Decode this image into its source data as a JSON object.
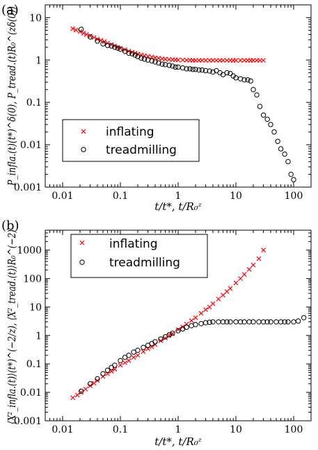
{
  "colors": {
    "inflating": "#ff0000",
    "treadmilling": "#000000"
  },
  "chart_data": [
    {
      "type": "scatter",
      "panel_label": "(a)",
      "xlabel": "t/t*, t/R₀ᶻ",
      "ylabel": "P_infla.(t)(t*)^δ(0), P_tread.(t)R₀^(zδ(0))",
      "x_scale": "log",
      "y_scale": "log",
      "xlim": [
        0.005,
        200
      ],
      "ylim": [
        0.001,
        20
      ],
      "x_ticks": [
        0.01,
        0.1,
        1,
        10,
        100
      ],
      "x_tick_labels": [
        "0.01",
        "0.1",
        "1",
        "10",
        "100"
      ],
      "y_ticks": [
        0.001,
        0.01,
        0.1,
        1,
        10
      ],
      "y_tick_labels": [
        "0.001",
        "0.01",
        "0.1",
        "1",
        "10"
      ],
      "legend_position": "lower-left",
      "series": [
        {
          "name": "inflating",
          "marker": "x",
          "x": [
            0.015,
            0.017,
            0.02,
            0.023,
            0.026,
            0.03,
            0.035,
            0.04,
            0.046,
            0.053,
            0.06,
            0.07,
            0.08,
            0.09,
            0.1,
            0.12,
            0.14,
            0.16,
            0.18,
            0.2,
            0.23,
            0.26,
            0.3,
            0.35,
            0.4,
            0.46,
            0.53,
            0.6,
            0.7,
            0.8,
            0.9,
            1.0,
            1.2,
            1.4,
            1.6,
            1.8,
            2.0,
            2.3,
            2.6,
            3.0,
            3.5,
            4.0,
            4.6,
            5.3,
            6.0,
            7.0,
            8.0,
            9.0,
            10,
            12,
            14,
            16,
            18,
            20,
            23,
            26,
            30
          ],
          "y": [
            5.5,
            5.1,
            4.7,
            4.3,
            4.0,
            3.7,
            3.4,
            3.1,
            2.9,
            2.7,
            2.5,
            2.3,
            2.15,
            2.0,
            1.9,
            1.75,
            1.62,
            1.52,
            1.45,
            1.38,
            1.32,
            1.26,
            1.21,
            1.17,
            1.13,
            1.1,
            1.07,
            1.05,
            1.03,
            1.02,
            1.01,
            1.0,
            1.0,
            0.99,
            0.99,
            0.98,
            0.98,
            0.98,
            0.98,
            0.98,
            0.98,
            0.98,
            0.98,
            0.98,
            0.98,
            0.98,
            0.98,
            0.98,
            0.98,
            0.98,
            0.98,
            0.98,
            0.98,
            0.98,
            0.98,
            0.98,
            0.98
          ]
        },
        {
          "name": "treadmilling",
          "marker": "o",
          "x": [
            0.021,
            0.03,
            0.04,
            0.05,
            0.06,
            0.07,
            0.08,
            0.09,
            0.1,
            0.12,
            0.14,
            0.16,
            0.18,
            0.2,
            0.23,
            0.26,
            0.3,
            0.35,
            0.4,
            0.46,
            0.53,
            0.6,
            0.7,
            0.8,
            0.9,
            1.0,
            1.2,
            1.4,
            1.6,
            1.8,
            2.0,
            2.3,
            2.6,
            3.0,
            3.5,
            4.0,
            4.6,
            5.3,
            6.0,
            7.0,
            8.0,
            9.0,
            10,
            12,
            14,
            16,
            18,
            20,
            23,
            26,
            30,
            35,
            40,
            46,
            53,
            60,
            70,
            80,
            90,
            100
          ],
          "y": [
            5.3,
            3.5,
            2.8,
            2.4,
            2.2,
            2.15,
            2.0,
            1.9,
            1.8,
            1.6,
            1.45,
            1.4,
            1.3,
            1.2,
            1.1,
            1.05,
            1.0,
            0.95,
            0.9,
            0.85,
            0.8,
            0.78,
            0.75,
            0.72,
            0.68,
            0.68,
            0.65,
            0.62,
            0.62,
            0.6,
            0.6,
            0.58,
            0.58,
            0.56,
            0.55,
            0.52,
            0.56,
            0.5,
            0.45,
            0.5,
            0.48,
            0.42,
            0.38,
            0.36,
            0.34,
            0.34,
            0.32,
            0.2,
            0.15,
            0.08,
            0.05,
            0.04,
            0.03,
            0.02,
            0.012,
            0.008,
            0.006,
            0.004,
            0.002,
            0.0015
          ]
        }
      ]
    },
    {
      "type": "scatter",
      "panel_label": "(b)",
      "xlabel": "t/t*, t/R₀ᶻ",
      "ylabel": "⟨X²_infla.(t)⟩(t*)^(−2/z), ⟨X²_tread.(t)⟩R₀^(−2)",
      "x_scale": "log",
      "y_scale": "log",
      "xlim": [
        0.005,
        200
      ],
      "ylim": [
        0.001,
        5000
      ],
      "x_ticks": [
        0.01,
        0.1,
        1,
        10,
        100
      ],
      "x_tick_labels": [
        "0.01",
        "0.1",
        "1",
        "10",
        "100"
      ],
      "y_ticks": [
        0.001,
        0.01,
        0.1,
        1,
        10,
        100,
        1000
      ],
      "y_tick_labels": [
        "0.001",
        "0.01",
        "0.1",
        "1",
        "10",
        "100",
        "1000"
      ],
      "legend_position": "upper-left",
      "series": [
        {
          "name": "inflating",
          "marker": "x",
          "x": [
            0.015,
            0.018,
            0.021,
            0.025,
            0.03,
            0.035,
            0.04,
            0.05,
            0.06,
            0.07,
            0.08,
            0.1,
            0.12,
            0.14,
            0.17,
            0.2,
            0.25,
            0.3,
            0.35,
            0.4,
            0.5,
            0.6,
            0.7,
            0.8,
            1.0,
            1.2,
            1.4,
            1.7,
            2.0,
            2.5,
            3.0,
            3.5,
            4.0,
            5.0,
            6.0,
            7.0,
            8.0,
            10,
            12,
            14,
            17,
            20,
            25,
            30
          ],
          "y": [
            0.0065,
            0.008,
            0.01,
            0.013,
            0.017,
            0.021,
            0.026,
            0.036,
            0.045,
            0.055,
            0.065,
            0.09,
            0.11,
            0.13,
            0.17,
            0.2,
            0.27,
            0.34,
            0.4,
            0.48,
            0.65,
            0.8,
            1.0,
            1.15,
            1.6,
            2.0,
            2.5,
            3.3,
            4.2,
            6.0,
            8.0,
            10,
            13,
            19,
            26,
            35,
            45,
            70,
            100,
            140,
            210,
            300,
            500,
            1000
          ]
        },
        {
          "name": "treadmilling",
          "marker": "o",
          "x": [
            0.021,
            0.03,
            0.04,
            0.05,
            0.06,
            0.07,
            0.08,
            0.1,
            0.12,
            0.14,
            0.17,
            0.2,
            0.25,
            0.3,
            0.35,
            0.4,
            0.5,
            0.6,
            0.7,
            0.8,
            1.0,
            1.2,
            1.4,
            1.7,
            2.0,
            2.5,
            3.0,
            3.5,
            4.0,
            5.0,
            6.0,
            7.0,
            8.0,
            10,
            12,
            14,
            17,
            20,
            25,
            30,
            35,
            40,
            50,
            60,
            70,
            80,
            100,
            120,
            150
          ],
          "y": [
            0.011,
            0.02,
            0.03,
            0.045,
            0.06,
            0.075,
            0.09,
            0.13,
            0.17,
            0.2,
            0.26,
            0.3,
            0.38,
            0.45,
            0.52,
            0.6,
            0.75,
            0.9,
            1.05,
            1.2,
            1.45,
            1.7,
            1.95,
            2.2,
            2.4,
            2.6,
            2.8,
            2.9,
            3.0,
            3.0,
            3.0,
            3.0,
            3.0,
            3.0,
            3.0,
            3.0,
            3.0,
            3.0,
            3.0,
            3.0,
            3.0,
            3.0,
            3.0,
            3.0,
            3.0,
            3.0,
            3.0,
            3.2,
            4.2
          ]
        }
      ]
    }
  ]
}
